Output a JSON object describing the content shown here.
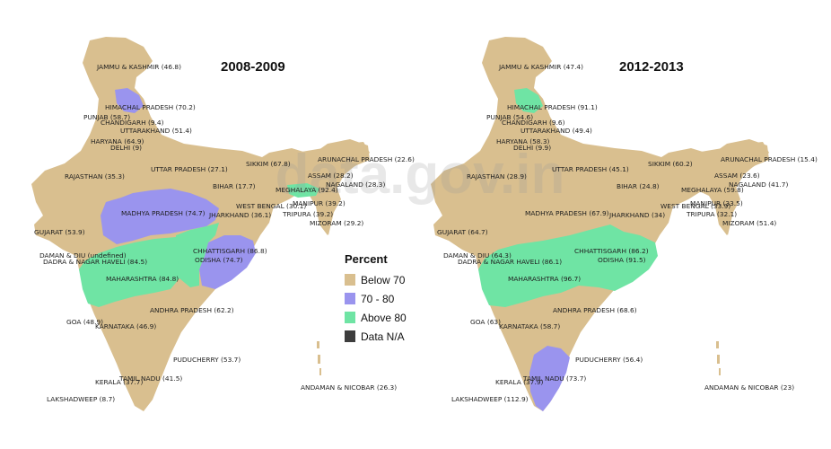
{
  "watermark": "data.gov.in",
  "colors": {
    "below_70": "#d9bf8f",
    "range_70_80": "#9a94ee",
    "above_80": "#6fe4a4",
    "na": "#3d3d3d"
  },
  "legend": {
    "title": "Percent",
    "items": [
      {
        "label": "Below 70",
        "key": "below_70"
      },
      {
        "label": "70 - 80",
        "key": "range_70_80"
      },
      {
        "label": "Above 80",
        "key": "above_80"
      },
      {
        "label": "Data N/A",
        "key": "na"
      }
    ]
  },
  "maps": [
    {
      "title": "2008-2009",
      "labels": [
        "JAMMU & KASHMIR (46.8)",
        "HIMACHAL PRADESH (70.2)",
        "PUNJAB (58.7)",
        "CHANDIGARH (9.4)",
        "UTTARAKHAND (51.4)",
        "HARYANA (64.9)",
        "DELHI (9)",
        "SIKKIM (67.8)",
        "ARUNACHAL PRADESH (22.6)",
        "UTTAR PRADESH (27.1)",
        "RAJASTHAN (35.3)",
        "ASSAM (28.2)",
        "BIHAR (17.7)",
        "MEGHALAYA (92.4)",
        "NAGALAND (28.3)",
        "MADHYA PRADESH (74.7)",
        "JHARKHAND (36.1)",
        "WEST BENGAL (30.1)",
        "MANIPUR (39.2)",
        "TRIPURA (39.2)",
        "MIZORAM (29.2)",
        "GUJARAT (53.9)",
        "CHHATTISGARH (86.8)",
        "DAMAN & DIU (undefined)",
        "DADRA & NAGAR HAVELI (84.5)",
        "ODISHA (74.7)",
        "MAHARASHTRA (84.8)",
        "ANDHRA PRADESH (62.2)",
        "GOA (48.9)",
        "KARNATAKA (46.9)",
        "PUDUCHERRY (53.7)",
        "TAMIL NADU (41.5)",
        "KERALA (37.7)",
        "LAKSHADWEEP (8.7)",
        "ANDAMAN & NICOBAR (26.3)"
      ]
    },
    {
      "title": "2012-2013",
      "labels": [
        "JAMMU & KASHMIR (47.4)",
        "HIMACHAL PRADESH (91.1)",
        "PUNJAB (54.6)",
        "CHANDIGARH (9.6)",
        "UTTARAKHAND (49.4)",
        "HARYANA (58.3)",
        "DELHI (9.9)",
        "SIKKIM (60.2)",
        "ARUNACHAL PRADESH (15.4)",
        "UTTAR PRADESH (45.1)",
        "RAJASTHAN (28.9)",
        "ASSAM (23.6)",
        "BIHAR (24.8)",
        "NAGALAND (41.7)",
        "MEGHALAYA (59.8)",
        "MADHYA PRADESH (67.9)",
        "WEST BENGAL (33.9)",
        "MANIPUR (33.5)",
        "JHARKHAND (34)",
        "TRIPURA (32.1)",
        "MIZORAM (51.4)",
        "GUJARAT (64.7)",
        "CHHATTISGARH (86.2)",
        "DAMAN & DIU (64.3)",
        "DADRA & NAGAR HAVELI (86.1)",
        "ODISHA (91.5)",
        "MAHARASHTRA (96.7)",
        "ANDHRA PRADESH (68.6)",
        "GOA (63)",
        "KARNATAKA (58.7)",
        "PUDUCHERRY (56.4)",
        "TAMIL NADU (73.7)",
        "KERALA (37.9)",
        "LAKSHADWEEP (112.9)",
        "ANDAMAN & NICOBAR (23)"
      ]
    }
  ]
}
